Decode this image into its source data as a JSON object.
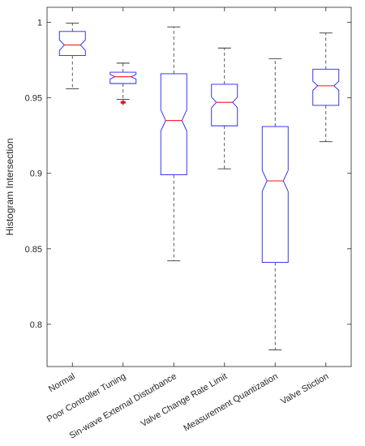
{
  "chart_data": {
    "type": "box",
    "title": "",
    "xlabel": "",
    "ylabel": "Histogram Intersection",
    "ylim": [
      0.772,
      1.01
    ],
    "yticks": [
      0.8,
      0.85,
      0.9,
      0.95,
      1
    ],
    "ytick_labels": [
      "0.8",
      "0.85",
      "0.9",
      "0.95",
      "1"
    ],
    "grid": false,
    "notched": true,
    "colors": {
      "box": "#1f1fff",
      "median": "#ff2a2a",
      "whisker": "#333333",
      "outlier": "#e01010",
      "axis": "#262626"
    },
    "categories": [
      "Normal",
      "Poor Controller Tuning",
      "Sin-wave External Disturbance",
      "Valve Change Rate Limit",
      "Measurement Quantization",
      "Valve Stiction"
    ],
    "boxes": [
      {
        "whisker_low": 0.956,
        "q1": 0.978,
        "median": 0.985,
        "q3": 0.994,
        "whisker_high": 0.9995,
        "notch_low": 0.9815,
        "notch_high": 0.9885,
        "outliers": []
      },
      {
        "whisker_low": 0.949,
        "q1": 0.9595,
        "median": 0.964,
        "q3": 0.967,
        "whisker_high": 0.973,
        "notch_low": 0.9625,
        "notch_high": 0.9655,
        "outliers": [
          0.9475,
          0.947,
          0.9465
        ]
      },
      {
        "whisker_low": 0.842,
        "q1": 0.899,
        "median": 0.935,
        "q3": 0.966,
        "whisker_high": 0.997,
        "notch_low": 0.928,
        "notch_high": 0.942,
        "outliers": []
      },
      {
        "whisker_low": 0.903,
        "q1": 0.9315,
        "median": 0.947,
        "q3": 0.959,
        "whisker_high": 0.983,
        "notch_low": 0.9435,
        "notch_high": 0.9505,
        "outliers": []
      },
      {
        "whisker_low": 0.783,
        "q1": 0.841,
        "median": 0.895,
        "q3": 0.931,
        "whisker_high": 0.976,
        "notch_low": 0.888,
        "notch_high": 0.902,
        "outliers": []
      },
      {
        "whisker_low": 0.921,
        "q1": 0.945,
        "median": 0.958,
        "q3": 0.969,
        "whisker_high": 0.993,
        "notch_low": 0.955,
        "notch_high": 0.961,
        "outliers": []
      }
    ]
  }
}
